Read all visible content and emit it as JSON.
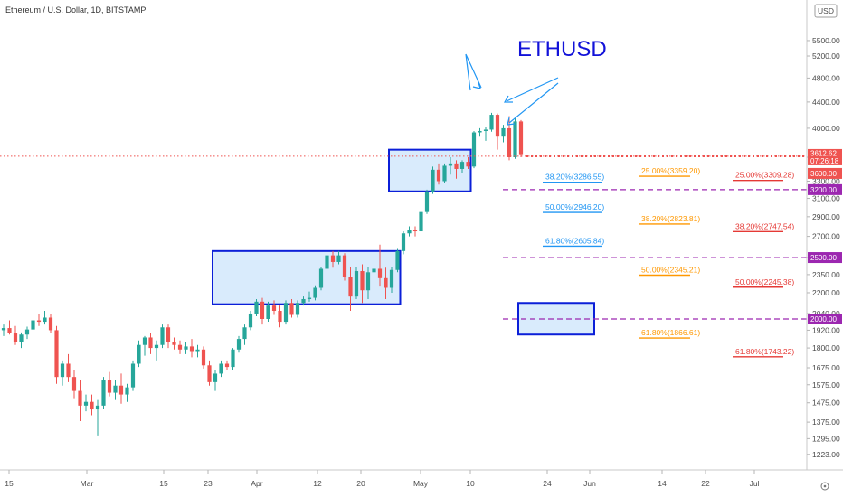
{
  "header": {
    "symbol_title": "Ethereum / U.S. Dollar, 1D, BITSTAMP",
    "currency_badge": "USD",
    "annotation_title": "ETHUSD"
  },
  "colors": {
    "up": "#26a69a",
    "down": "#ef5350",
    "box_stroke": "#0b1fd8",
    "box_fill": "#cfe6fb",
    "purple": "#9c27b0",
    "price_line": "#ef5350",
    "fib_blue": "#2196f3",
    "fib_orange": "#ff9800",
    "fib_red": "#e53935",
    "arrow": "#2196f3"
  },
  "chart_data": {
    "type": "candlestick",
    "title": "Ethereum / U.S. Dollar, 1D, BITSTAMP",
    "x_ticks": [
      "15",
      "Mar",
      "15",
      "23",
      "Apr",
      "12",
      "20",
      "May",
      "10",
      "24",
      "Jun",
      "14",
      "22",
      "Jul"
    ],
    "y_ticks": [
      1223.0,
      1295.0,
      1375.0,
      1475.0,
      1575.0,
      1675.0,
      1800.0,
      1920.0,
      2040.0,
      2200.0,
      2350.0,
      2500.0,
      2700.0,
      2900.0,
      3100.0,
      3300.0,
      3600.0,
      4000.0,
      4400.0,
      4800.0,
      5200.0,
      5500.0
    ],
    "y_scale": "log",
    "candles_ohlc": [
      [
        1920,
        1960,
        1880,
        1935
      ],
      [
        1935,
        1990,
        1890,
        1900
      ],
      [
        1900,
        1950,
        1820,
        1840
      ],
      [
        1840,
        1905,
        1800,
        1890
      ],
      [
        1890,
        1945,
        1860,
        1925
      ],
      [
        1925,
        2010,
        1900,
        1990
      ],
      [
        1990,
        2040,
        1950,
        1980
      ],
      [
        1980,
        2060,
        1960,
        2010
      ],
      [
        2010,
        2040,
        1900,
        1920
      ],
      [
        1920,
        1950,
        1580,
        1620
      ],
      [
        1620,
        1720,
        1570,
        1700
      ],
      [
        1700,
        1760,
        1590,
        1620
      ],
      [
        1620,
        1660,
        1500,
        1540
      ],
      [
        1540,
        1600,
        1380,
        1460
      ],
      [
        1460,
        1520,
        1430,
        1480
      ],
      [
        1480,
        1520,
        1410,
        1440
      ],
      [
        1440,
        1490,
        1310,
        1460
      ],
      [
        1460,
        1620,
        1440,
        1600
      ],
      [
        1600,
        1650,
        1510,
        1530
      ],
      [
        1530,
        1600,
        1490,
        1570
      ],
      [
        1570,
        1640,
        1470,
        1520
      ],
      [
        1520,
        1580,
        1480,
        1560
      ],
      [
        1560,
        1720,
        1540,
        1700
      ],
      [
        1700,
        1850,
        1680,
        1820
      ],
      [
        1820,
        1880,
        1750,
        1870
      ],
      [
        1870,
        1900,
        1760,
        1800
      ],
      [
        1800,
        1850,
        1720,
        1820
      ],
      [
        1820,
        1960,
        1800,
        1940
      ],
      [
        1940,
        1960,
        1800,
        1840
      ],
      [
        1840,
        1870,
        1790,
        1820
      ],
      [
        1820,
        1850,
        1760,
        1790
      ],
      [
        1790,
        1840,
        1760,
        1810
      ],
      [
        1810,
        1860,
        1740,
        1780
      ],
      [
        1780,
        1820,
        1740,
        1790
      ],
      [
        1790,
        1810,
        1670,
        1690
      ],
      [
        1690,
        1720,
        1570,
        1590
      ],
      [
        1590,
        1660,
        1540,
        1640
      ],
      [
        1640,
        1720,
        1620,
        1700
      ],
      [
        1700,
        1720,
        1660,
        1680
      ],
      [
        1680,
        1800,
        1660,
        1790
      ],
      [
        1790,
        1880,
        1770,
        1860
      ],
      [
        1860,
        1960,
        1820,
        1940
      ],
      [
        1940,
        2060,
        1920,
        2040
      ],
      [
        2040,
        2150,
        2020,
        2130
      ],
      [
        2130,
        2160,
        1960,
        2000
      ],
      [
        2000,
        2130,
        1980,
        2100
      ],
      [
        2100,
        2140,
        2030,
        2060
      ],
      [
        2060,
        2100,
        1940,
        1980
      ],
      [
        1980,
        2140,
        1960,
        2120
      ],
      [
        2120,
        2150,
        2010,
        2030
      ],
      [
        2030,
        2140,
        2010,
        2120
      ],
      [
        2120,
        2170,
        2100,
        2150
      ],
      [
        2150,
        2210,
        2130,
        2160
      ],
      [
        2160,
        2260,
        2140,
        2240
      ],
      [
        2240,
        2420,
        2220,
        2400
      ],
      [
        2400,
        2540,
        2380,
        2520
      ],
      [
        2520,
        2560,
        2410,
        2460
      ],
      [
        2460,
        2560,
        2440,
        2520
      ],
      [
        2520,
        2540,
        2300,
        2330
      ],
      [
        2330,
        2420,
        2060,
        2170
      ],
      [
        2170,
        2420,
        2150,
        2380
      ],
      [
        2380,
        2440,
        2120,
        2220
      ],
      [
        2220,
        2420,
        2150,
        2370
      ],
      [
        2370,
        2460,
        2280,
        2400
      ],
      [
        2400,
        2620,
        2250,
        2320
      ],
      [
        2320,
        2410,
        2150,
        2240
      ],
      [
        2240,
        2420,
        2200,
        2390
      ],
      [
        2390,
        2580,
        2370,
        2560
      ],
      [
        2560,
        2750,
        2530,
        2730
      ],
      [
        2730,
        2800,
        2700,
        2760
      ],
      [
        2760,
        2800,
        2700,
        2750
      ],
      [
        2750,
        2980,
        2740,
        2950
      ],
      [
        2950,
        3200,
        2930,
        3180
      ],
      [
        3180,
        3480,
        3150,
        3440
      ],
      [
        3440,
        3520,
        3260,
        3300
      ],
      [
        3300,
        3520,
        3280,
        3490
      ],
      [
        3490,
        3600,
        3380,
        3520
      ],
      [
        3520,
        3560,
        3330,
        3450
      ],
      [
        3450,
        3560,
        3400,
        3540
      ],
      [
        3540,
        3600,
        3450,
        3480
      ],
      [
        3480,
        3960,
        3460,
        3940
      ],
      [
        3940,
        4000,
        3880,
        3960
      ],
      [
        3960,
        4020,
        3820,
        3980
      ],
      [
        3980,
        4230,
        3950,
        4200
      ],
      [
        4200,
        4220,
        3700,
        3880
      ],
      [
        3880,
        4050,
        3800,
        4000
      ],
      [
        4000,
        4180,
        3560,
        3600
      ],
      [
        3600,
        4150,
        3580,
        4100
      ],
      [
        4100,
        4120,
        3600,
        3640
      ]
    ],
    "current_price": 3612.62,
    "countdown": "07:26:18",
    "price_tags": [
      {
        "value": 3600.0,
        "label": "3600.00",
        "color": "#ef5350"
      },
      {
        "value": 3200.0,
        "label": "3200.00",
        "color": "#9c27b0"
      },
      {
        "value": 2500.0,
        "label": "2500.00",
        "color": "#9c27b0"
      },
      {
        "value": 2000.0,
        "label": "2000.00",
        "color": "#9c27b0"
      }
    ],
    "current_tag": {
      "label": "3612.62",
      "color": "#ef5350"
    },
    "horizontal_lines": [
      {
        "value": 3200.0,
        "color": "#9c27b0",
        "style": "dashed"
      },
      {
        "value": 2500.0,
        "color": "#9c27b0",
        "style": "dashed"
      },
      {
        "value": 2000.0,
        "color": "#9c27b0",
        "style": "dashed"
      }
    ],
    "fib_levels": [
      {
        "label": "38.20%(3286.55)",
        "value": 3286.55,
        "color": "#2196f3",
        "col": 0
      },
      {
        "label": "50.00%(2946.20)",
        "value": 2946.2,
        "color": "#2196f3",
        "col": 0
      },
      {
        "label": "61.80%(2605.84)",
        "value": 2605.84,
        "color": "#2196f3",
        "col": 0
      },
      {
        "label": "25.00%(3359.20)",
        "value": 3359.2,
        "color": "#ff9800",
        "col": 1
      },
      {
        "label": "38.20%(2823.81)",
        "value": 2823.81,
        "color": "#ff9800",
        "col": 1
      },
      {
        "label": "50.00%(2345.21)",
        "value": 2345.21,
        "color": "#ff9800",
        "col": 1
      },
      {
        "label": "61.80%(1866.61)",
        "value": 1866.61,
        "color": "#ff9800",
        "col": 1
      },
      {
        "label": "25.00%(3309.28)",
        "value": 3309.28,
        "color": "#e53935",
        "col": 2
      },
      {
        "label": "38.20%(2747.54)",
        "value": 2747.54,
        "color": "#e53935",
        "col": 2
      },
      {
        "label": "50.00%(2245.38)",
        "value": 2245.38,
        "color": "#e53935",
        "col": 2
      },
      {
        "label": "61.80%(1743.22)",
        "value": 1743.22,
        "color": "#e53935",
        "col": 2
      }
    ],
    "boxes": [
      {
        "from_candle": 36,
        "to_candle": 67,
        "low": 2110,
        "high": 2560,
        "fill": true
      },
      {
        "from_candle": 66,
        "to_candle": 79,
        "low": 3180,
        "high": 3700,
        "fill": true
      },
      {
        "from_candle": 88,
        "to_candle": 100,
        "low": 1890,
        "high": 2120,
        "fill": true
      }
    ],
    "annotations": [
      {
        "text": "ETHUSD",
        "kind": "label"
      }
    ],
    "grid": false,
    "legend": "none"
  }
}
